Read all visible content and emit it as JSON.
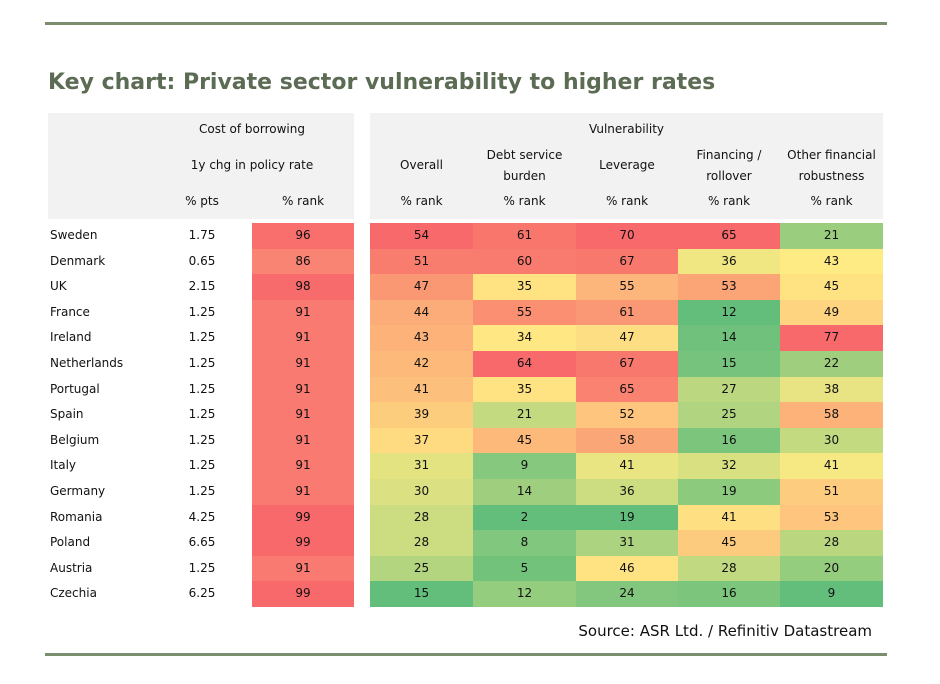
{
  "title": "Key chart: Private sector vulnerability to higher rates",
  "source": "Source: ASR Ltd. / Refinitiv Datastream",
  "colors": {
    "rule": "#7b8f6e",
    "title": "#5c6b54",
    "rank_red": "#f8696b",
    "rank_yellow": "#ffeb84",
    "rank_green": "#63be7b",
    "header_bg": "#f2f2f2"
  },
  "headers": {
    "cost_group": "Cost of borrowing",
    "cost_sub": "1y chg in policy rate",
    "vuln_group": "Vulnerability",
    "col_pts": "% pts",
    "col_rank": "% rank",
    "vuln_cols": [
      {
        "line1": "",
        "line2": "Overall",
        "unit": "% rank"
      },
      {
        "line1": "Debt service",
        "line2": "burden",
        "unit": "% rank"
      },
      {
        "line1": "",
        "line2": "Leverage",
        "unit": "% rank"
      },
      {
        "line1": "Financing /",
        "line2": "rollover",
        "unit": "% rank"
      },
      {
        "line1": "Other financial",
        "line2": "robustness",
        "unit": "% rank"
      }
    ]
  },
  "chart_data": {
    "type": "table",
    "title": "Key chart: Private sector vulnerability to higher rates",
    "columns": [
      "1y chg in policy rate (% pts)",
      "1y chg in policy rate (% rank)",
      "Overall (% rank)",
      "Debt service burden (% rank)",
      "Leverage (% rank)",
      "Financing / rollover (% rank)",
      "Other financial robustness (% rank)"
    ],
    "rows": [
      {
        "country": "Sweden",
        "pts": "1.75",
        "rank": 96,
        "overall": 54,
        "debt": 61,
        "leverage": 70,
        "financing": 65,
        "other": 21
      },
      {
        "country": "Denmark",
        "pts": "0.65",
        "rank": 86,
        "overall": 51,
        "debt": 60,
        "leverage": 67,
        "financing": 36,
        "other": 43
      },
      {
        "country": "UK",
        "pts": "2.15",
        "rank": 98,
        "overall": 47,
        "debt": 35,
        "leverage": 55,
        "financing": 53,
        "other": 45
      },
      {
        "country": "France",
        "pts": "1.25",
        "rank": 91,
        "overall": 44,
        "debt": 55,
        "leverage": 61,
        "financing": 12,
        "other": 49
      },
      {
        "country": "Ireland",
        "pts": "1.25",
        "rank": 91,
        "overall": 43,
        "debt": 34,
        "leverage": 47,
        "financing": 14,
        "other": 77
      },
      {
        "country": "Netherlands",
        "pts": "1.25",
        "rank": 91,
        "overall": 42,
        "debt": 64,
        "leverage": 67,
        "financing": 15,
        "other": 22
      },
      {
        "country": "Portugal",
        "pts": "1.25",
        "rank": 91,
        "overall": 41,
        "debt": 35,
        "leverage": 65,
        "financing": 27,
        "other": 38
      },
      {
        "country": "Spain",
        "pts": "1.25",
        "rank": 91,
        "overall": 39,
        "debt": 21,
        "leverage": 52,
        "financing": 25,
        "other": 58
      },
      {
        "country": "Belgium",
        "pts": "1.25",
        "rank": 91,
        "overall": 37,
        "debt": 45,
        "leverage": 58,
        "financing": 16,
        "other": 30
      },
      {
        "country": "Italy",
        "pts": "1.25",
        "rank": 91,
        "overall": 31,
        "debt": 9,
        "leverage": 41,
        "financing": 32,
        "other": 41
      },
      {
        "country": "Germany",
        "pts": "1.25",
        "rank": 91,
        "overall": 30,
        "debt": 14,
        "leverage": 36,
        "financing": 19,
        "other": 51
      },
      {
        "country": "Romania",
        "pts": "4.25",
        "rank": 99,
        "overall": 28,
        "debt": 2,
        "leverage": 19,
        "financing": 41,
        "other": 53
      },
      {
        "country": "Poland",
        "pts": "6.65",
        "rank": 99,
        "overall": 28,
        "debt": 8,
        "leverage": 31,
        "financing": 45,
        "other": 28
      },
      {
        "country": "Austria",
        "pts": "1.25",
        "rank": 91,
        "overall": 25,
        "debt": 5,
        "leverage": 46,
        "financing": 28,
        "other": 20
      },
      {
        "country": "Czechia",
        "pts": "6.25",
        "rank": 99,
        "overall": 15,
        "debt": 12,
        "leverage": 24,
        "financing": 16,
        "other": 9
      }
    ]
  }
}
